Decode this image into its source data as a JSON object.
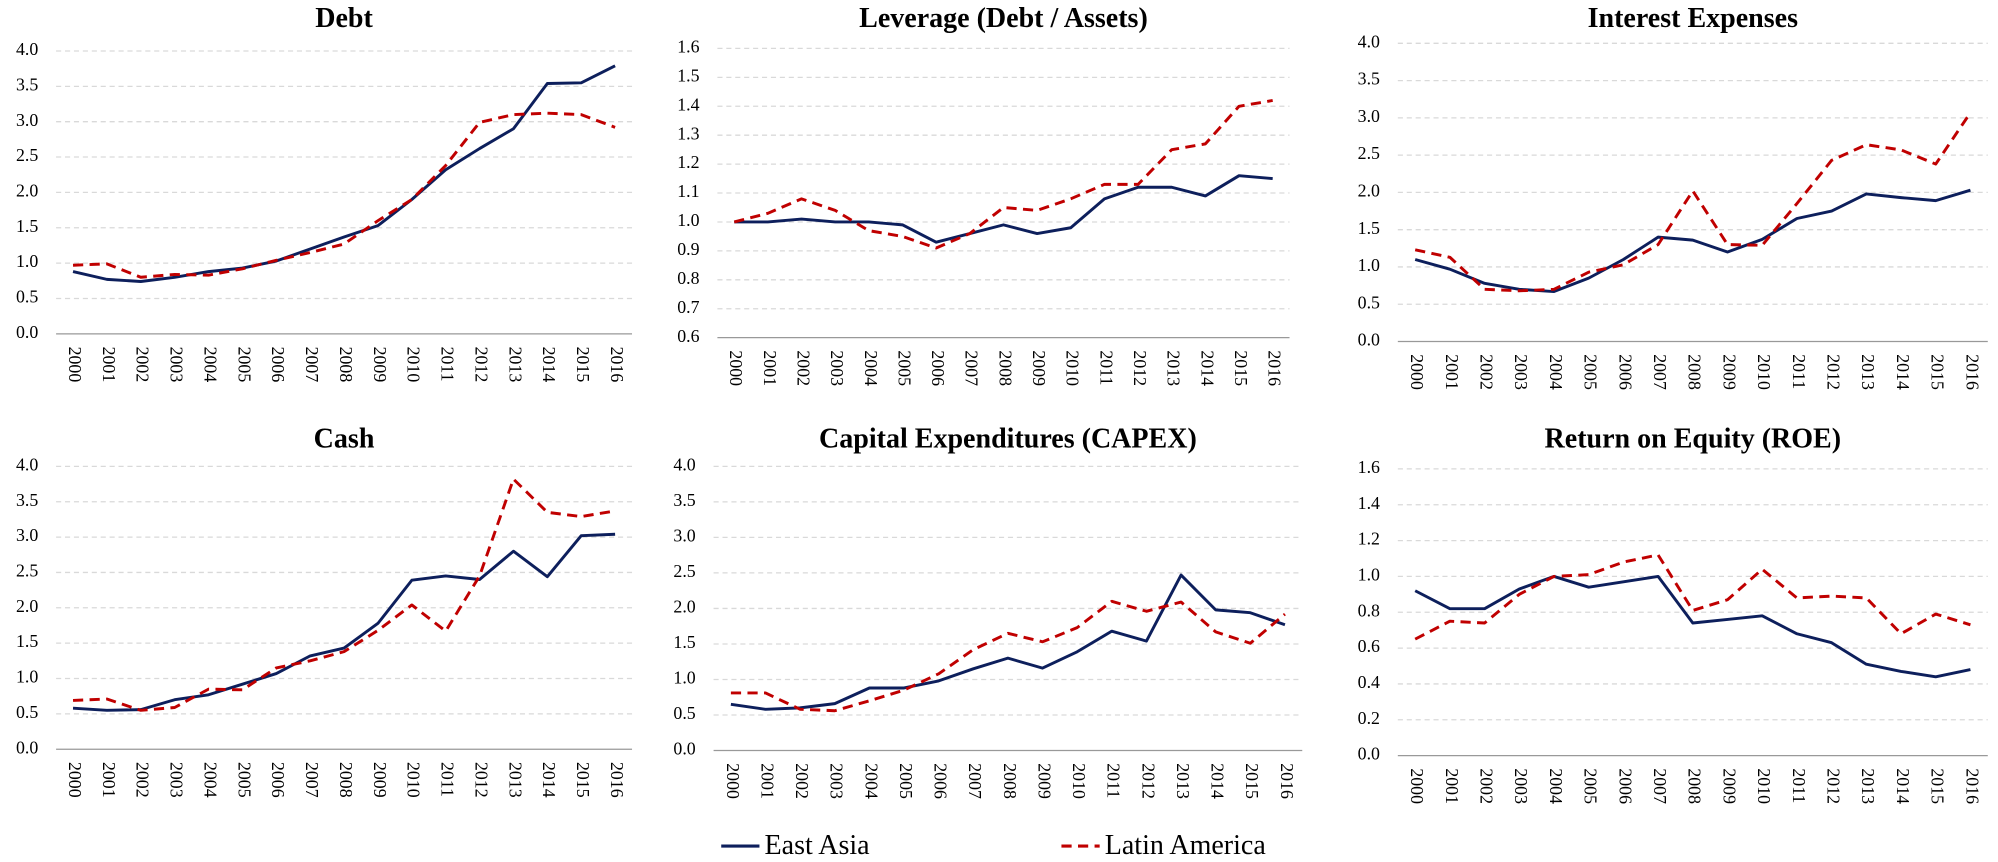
{
  "chart_data": [
    {
      "type": "line",
      "title": "Debt",
      "categories": [
        "2000",
        "2001",
        "2002",
        "2003",
        "2004",
        "2005",
        "2006",
        "2007",
        "2008",
        "2009",
        "2010",
        "2011",
        "2012",
        "2013",
        "2014",
        "2015",
        "2016"
      ],
      "ylim": [
        0,
        4
      ],
      "yticks": [
        {
          "value": 0,
          "label": "0.0"
        },
        0.5,
        {
          "value": 1,
          "label": "1.0"
        },
        1.5,
        {
          "value": 2,
          "label": "2.0"
        },
        2.5,
        {
          "value": 3,
          "label": "3.0"
        },
        3.5,
        {
          "value": 4,
          "label": "4.0"
        }
      ],
      "grid": true,
      "series": [
        {
          "name": "East Asia",
          "color": "#0d1f5c",
          "linestyle": "solid",
          "values": [
            0.88,
            0.77,
            0.74,
            0.8,
            0.88,
            0.93,
            1.03,
            1.2,
            1.37,
            1.53,
            1.9,
            2.32,
            2.62,
            2.9,
            3.54,
            3.55,
            3.79
          ]
        },
        {
          "name": "Latin America",
          "color": "#c00000",
          "linestyle": "dashed",
          "values": [
            0.97,
            0.99,
            0.8,
            0.84,
            0.83,
            0.92,
            1.04,
            1.15,
            1.27,
            1.6,
            1.9,
            2.38,
            2.99,
            3.1,
            3.12,
            3.1,
            2.92
          ]
        }
      ]
    },
    {
      "type": "line",
      "title": "Leverage (Debt / Assets)",
      "categories": [
        "2000",
        "2001",
        "2002",
        "2003",
        "2004",
        "2005",
        "2006",
        "2007",
        "2008",
        "2009",
        "2010",
        "2011",
        "2012",
        "2013",
        "2014",
        "2015",
        "2016"
      ],
      "ylim": [
        0.6,
        1.6
      ],
      "yticks": [
        0.6,
        0.7,
        0.8,
        0.9,
        {
          "value": 1,
          "label": "1.0"
        },
        1.1,
        1.2,
        1.3,
        1.4,
        1.5,
        1.6
      ],
      "grid": true,
      "series": [
        {
          "name": "East Asia",
          "color": "#0d1f5c",
          "linestyle": "solid",
          "values": [
            1.0,
            1.0,
            1.01,
            1.0,
            1.0,
            0.99,
            0.93,
            0.96,
            0.99,
            0.96,
            0.98,
            1.08,
            1.12,
            1.12,
            1.09,
            1.16,
            1.15
          ]
        },
        {
          "name": "Latin America",
          "color": "#c00000",
          "linestyle": "dashed",
          "values": [
            1.0,
            1.03,
            1.08,
            1.04,
            0.97,
            0.95,
            0.91,
            0.96,
            1.05,
            1.04,
            1.08,
            1.13,
            1.13,
            1.25,
            1.27,
            1.4,
            1.42
          ]
        }
      ]
    },
    {
      "type": "line",
      "title": "Interest Expenses",
      "categories": [
        "2000",
        "2001",
        "2002",
        "2003",
        "2004",
        "2005",
        "2006",
        "2007",
        "2008",
        "2009",
        "2010",
        "2011",
        "2012",
        "2013",
        "2014",
        "2015",
        "2016"
      ],
      "ylim": [
        0,
        4
      ],
      "yticks": [
        {
          "value": 0,
          "label": "0.0"
        },
        0.5,
        {
          "value": 1,
          "label": "1.0"
        },
        1.5,
        {
          "value": 2,
          "label": "2.0"
        },
        2.5,
        {
          "value": 3,
          "label": "3.0"
        },
        3.5,
        {
          "value": 4,
          "label": "4.0"
        }
      ],
      "grid": true,
      "series": [
        {
          "name": "East Asia",
          "color": "#0d1f5c",
          "linestyle": "solid",
          "values": [
            1.1,
            0.97,
            0.78,
            0.7,
            0.67,
            0.85,
            1.1,
            1.4,
            1.36,
            1.2,
            1.37,
            1.65,
            1.75,
            1.98,
            1.93,
            1.89,
            2.03
          ]
        },
        {
          "name": "Latin America",
          "color": "#c00000",
          "linestyle": "dashed",
          "values": [
            1.23,
            1.13,
            0.7,
            0.68,
            0.7,
            0.93,
            1.03,
            1.3,
            2.02,
            1.3,
            1.29,
            1.85,
            2.43,
            2.64,
            2.57,
            2.38,
            3.07
          ]
        }
      ]
    },
    {
      "type": "line",
      "title": "Cash",
      "categories": [
        "2000",
        "2001",
        "2002",
        "2003",
        "2004",
        "2005",
        "2006",
        "2007",
        "2008",
        "2009",
        "2010",
        "2011",
        "2012",
        "2013",
        "2014",
        "2015",
        "2016"
      ],
      "ylim": [
        0,
        4
      ],
      "yticks": [
        {
          "value": 0,
          "label": "0.0"
        },
        0.5,
        {
          "value": 1,
          "label": "1.0"
        },
        1.5,
        {
          "value": 2,
          "label": "2.0"
        },
        2.5,
        {
          "value": 3,
          "label": "3.0"
        },
        3.5,
        {
          "value": 4,
          "label": "4.0"
        }
      ],
      "grid": true,
      "series": [
        {
          "name": "East Asia",
          "color": "#0d1f5c",
          "linestyle": "solid",
          "values": [
            0.58,
            0.55,
            0.56,
            0.7,
            0.77,
            0.92,
            1.07,
            1.32,
            1.43,
            1.78,
            2.39,
            2.45,
            2.4,
            2.8,
            2.44,
            3.02,
            3.04
          ]
        },
        {
          "name": "Latin America",
          "color": "#c00000",
          "linestyle": "dashed",
          "values": [
            0.69,
            0.71,
            0.55,
            0.59,
            0.85,
            0.84,
            1.15,
            1.25,
            1.38,
            1.68,
            2.04,
            1.67,
            2.45,
            3.82,
            3.35,
            3.29,
            3.37
          ]
        }
      ]
    },
    {
      "type": "line",
      "title": "Capital Expenditures (CAPEX)",
      "categories": [
        "2000",
        "2001",
        "2002",
        "2003",
        "2004",
        "2005",
        "2006",
        "2007",
        "2008",
        "2009",
        "2010",
        "2011",
        "2012",
        "2013",
        "2014",
        "2015",
        "2016"
      ],
      "ylim": [
        0,
        4
      ],
      "yticks": [
        {
          "value": 0,
          "label": "0.0"
        },
        0.5,
        {
          "value": 1,
          "label": "1.0"
        },
        1.5,
        {
          "value": 2,
          "label": "2.0"
        },
        2.5,
        {
          "value": 3,
          "label": "3.0"
        },
        3.5,
        {
          "value": 4,
          "label": "4.0"
        }
      ],
      "grid": true,
      "series": [
        {
          "name": "East Asia",
          "color": "#0d1f5c",
          "linestyle": "solid",
          "values": [
            0.65,
            0.58,
            0.6,
            0.66,
            0.88,
            0.88,
            0.98,
            1.15,
            1.3,
            1.16,
            1.39,
            1.68,
            1.54,
            2.47,
            1.98,
            1.94,
            1.77
          ]
        },
        {
          "name": "Latin America",
          "color": "#c00000",
          "linestyle": "dashed",
          "values": [
            0.81,
            0.81,
            0.58,
            0.56,
            0.7,
            0.85,
            1.08,
            1.42,
            1.65,
            1.53,
            1.73,
            2.1,
            1.96,
            2.09,
            1.67,
            1.51,
            1.92
          ]
        }
      ]
    },
    {
      "type": "line",
      "title": "Return on Equity (ROE)",
      "categories": [
        "2000",
        "2001",
        "2002",
        "2003",
        "2004",
        "2005",
        "2006",
        "2007",
        "2008",
        "2009",
        "2010",
        "2011",
        "2012",
        "2013",
        "2014",
        "2015",
        "2016"
      ],
      "ylim": [
        0,
        1.6
      ],
      "yticks": [
        {
          "value": 0,
          "label": "0.0"
        },
        0.2,
        0.4,
        0.6,
        0.8,
        {
          "value": 1,
          "label": "1.0"
        },
        1.2,
        1.4,
        1.6
      ],
      "grid": true,
      "series": [
        {
          "name": "East Asia",
          "color": "#0d1f5c",
          "linestyle": "solid",
          "values": [
            0.92,
            0.82,
            0.82,
            0.93,
            1.0,
            0.94,
            0.97,
            1.0,
            0.74,
            0.76,
            0.78,
            0.68,
            0.63,
            0.51,
            0.47,
            0.44,
            0.48
          ]
        },
        {
          "name": "Latin America",
          "color": "#c00000",
          "linestyle": "dashed",
          "values": [
            0.65,
            0.75,
            0.74,
            0.9,
            1.0,
            1.01,
            1.08,
            1.12,
            0.81,
            0.87,
            1.04,
            0.88,
            0.89,
            0.88,
            0.68,
            0.79,
            0.73
          ]
        }
      ]
    }
  ]
}
